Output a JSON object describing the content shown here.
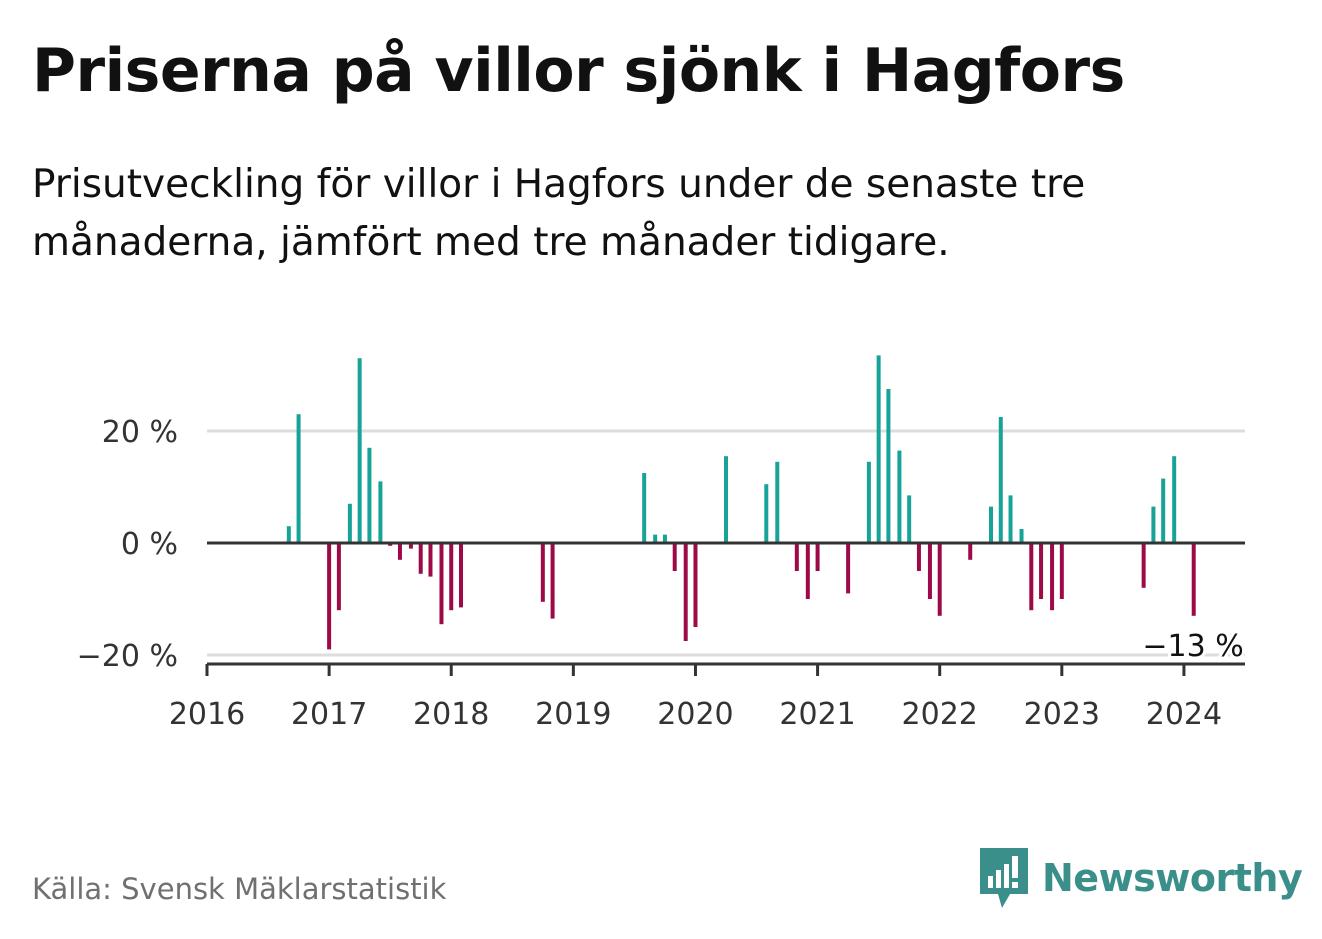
{
  "title": "Priserna på villor sjönk i Hagfors",
  "subtitle": "Prisutveckling för villor i Hagfors under de senaste tre månaderna, jämfört med tre månader tidigare.",
  "source": "Källa: Svensk Mäklarstatistik",
  "brand": {
    "name": "Newsworthy",
    "icon": "newsworthy-logo-icon",
    "color": "#3a8f8a"
  },
  "chart_data": {
    "type": "bar",
    "x_unit": "year",
    "xlim": [
      2016,
      2024.5
    ],
    "ylim": [
      -21,
      38
    ],
    "y_ticks": [
      20,
      0,
      -20
    ],
    "y_tick_labels": [
      "20 %",
      "0 %",
      "−20 %"
    ],
    "x_ticks": [
      2016,
      2017,
      2018,
      2019,
      2020,
      2021,
      2022,
      2023,
      2024
    ],
    "x_tick_labels": [
      "2016",
      "2017",
      "2018",
      "2019",
      "2020",
      "2021",
      "2022",
      "2023",
      "2024"
    ],
    "grid": true,
    "colors": {
      "positive": "#17a398",
      "negative": "#9e0a48"
    },
    "last_value_label": "−13 %",
    "x": [
      2016.67,
      2016.75,
      2017.0,
      2017.08,
      2017.17,
      2017.25,
      2017.33,
      2017.42,
      2017.5,
      2017.58,
      2017.67,
      2017.75,
      2017.83,
      2017.92,
      2018.0,
      2018.08,
      2018.75,
      2018.83,
      2019.58,
      2019.67,
      2019.75,
      2019.83,
      2019.92,
      2020.0,
      2020.25,
      2020.58,
      2020.67,
      2020.83,
      2020.92,
      2021.0,
      2021.25,
      2021.42,
      2021.5,
      2021.58,
      2021.67,
      2021.75,
      2021.83,
      2021.92,
      2022.0,
      2022.25,
      2022.42,
      2022.5,
      2022.58,
      2022.67,
      2022.75,
      2022.83,
      2022.92,
      2023.0,
      2023.67,
      2023.75,
      2023.83,
      2023.92,
      2024.08
    ],
    "values": [
      3,
      23,
      -19,
      -12,
      7,
      33,
      17,
      11,
      -0.5,
      -3,
      -1,
      -5.5,
      -6,
      -14.5,
      -12,
      -11.5,
      -10.5,
      -13.5,
      12.5,
      1.5,
      1.5,
      -5,
      -17.5,
      -15,
      15.5,
      10.5,
      14.5,
      -5,
      -10,
      -5,
      -9,
      14.5,
      33.5,
      27.5,
      16.5,
      8.5,
      -5,
      -10,
      -13,
      -3,
      6.5,
      22.5,
      8.5,
      2.5,
      -12,
      -10,
      -12,
      -10,
      -8,
      6.5,
      11.5,
      15.5,
      -13
    ]
  }
}
